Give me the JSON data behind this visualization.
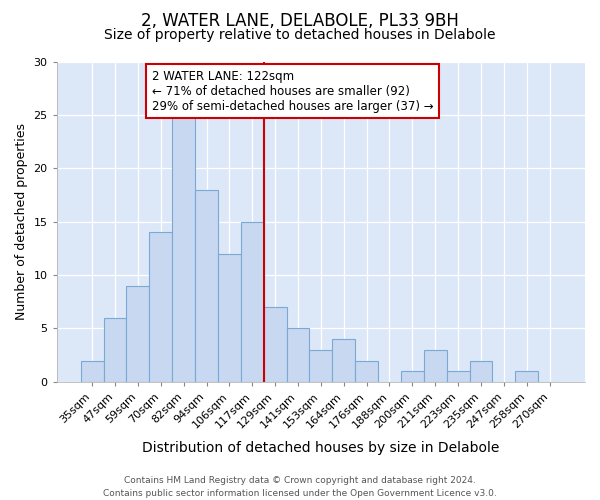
{
  "title": "2, WATER LANE, DELABOLE, PL33 9BH",
  "subtitle": "Size of property relative to detached houses in Delabole",
  "xlabel": "Distribution of detached houses by size in Delabole",
  "ylabel": "Number of detached properties",
  "categories": [
    "35sqm",
    "47sqm",
    "59sqm",
    "70sqm",
    "82sqm",
    "94sqm",
    "106sqm",
    "117sqm",
    "129sqm",
    "141sqm",
    "153sqm",
    "164sqm",
    "176sqm",
    "188sqm",
    "200sqm",
    "211sqm",
    "223sqm",
    "235sqm",
    "247sqm",
    "258sqm",
    "270sqm"
  ],
  "values": [
    2,
    6,
    9,
    14,
    25,
    18,
    12,
    15,
    7,
    5,
    3,
    4,
    2,
    0,
    1,
    3,
    1,
    2,
    0,
    1,
    0
  ],
  "bar_color": "#c8d8f0",
  "bar_edge_color": "#7aaad4",
  "plot_bg_color": "#dce8f8",
  "fig_bg_color": "#ffffff",
  "vline_color": "#cc0000",
  "annotation_text": "2 WATER LANE: 122sqm\n← 71% of detached houses are smaller (92)\n29% of semi-detached houses are larger (37) →",
  "annotation_box_color": "#ffffff",
  "annotation_box_edge": "#cc0000",
  "ylim": [
    0,
    30
  ],
  "yticks": [
    0,
    5,
    10,
    15,
    20,
    25,
    30
  ],
  "footer": "Contains HM Land Registry data © Crown copyright and database right 2024.\nContains public sector information licensed under the Open Government Licence v3.0.",
  "title_fontsize": 12,
  "subtitle_fontsize": 10,
  "xlabel_fontsize": 10,
  "ylabel_fontsize": 9,
  "tick_fontsize": 8,
  "annotation_fontsize": 8.5,
  "footer_fontsize": 6.5,
  "vline_x_index": 7.5
}
